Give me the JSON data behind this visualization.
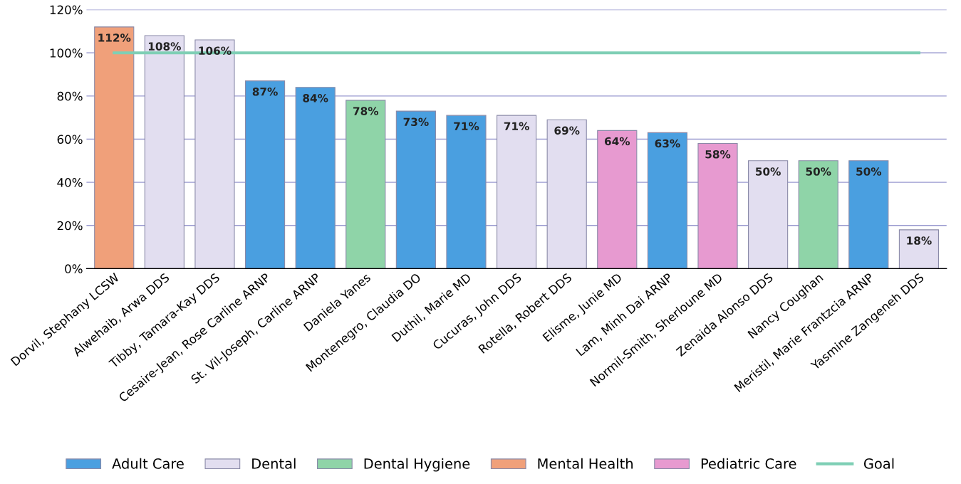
{
  "chart_data": {
    "type": "bar",
    "categories": [
      "Dorvil, Stephany LCSW",
      "Alwehaib, Arwa DDS",
      "Tibby, Tamara-Kay DDS",
      "Cesaire-Jean, Rose Carline ARNP",
      "St. Vil-Joseph, Carline ARNP",
      "Daniela Yanes",
      "Montenegro, Claudia DO",
      "Duthil, Marie MD",
      "Cucuras, John DDS",
      "Rotella, Robert DDS",
      "Elisme, Junie MD",
      "Lam, Minh Dai ARNP",
      "Normil-Smith, Sherloune MD",
      "Zenaida Alonso DDS",
      "Nancy Coughan",
      "Meristil, Marie Frantzcia ARNP",
      "Yasmine Zangeneh DDS"
    ],
    "series": [
      {
        "name": "Adult Care",
        "color": "#4a9fe0",
        "values": [
          null,
          null,
          null,
          87,
          84,
          null,
          73,
          71,
          null,
          null,
          null,
          63,
          null,
          null,
          null,
          50,
          null
        ],
        "value_labels": [
          null,
          null,
          null,
          "87%",
          "84%",
          null,
          "73%",
          "71%",
          null,
          null,
          null,
          "63%",
          null,
          null,
          null,
          "50%",
          null
        ]
      },
      {
        "name": "Dental",
        "color": "#e2def0",
        "values": [
          null,
          108,
          106,
          null,
          null,
          null,
          null,
          null,
          71,
          69,
          null,
          null,
          null,
          50,
          null,
          null,
          18
        ],
        "value_labels": [
          null,
          "108%",
          "106%",
          null,
          null,
          null,
          null,
          null,
          "71%",
          "69%",
          null,
          null,
          null,
          "50%",
          null,
          null,
          "18%"
        ]
      },
      {
        "name": "Dental Hygiene",
        "color": "#8fd4a8",
        "values": [
          null,
          null,
          null,
          null,
          null,
          78,
          null,
          null,
          null,
          null,
          null,
          null,
          null,
          null,
          50,
          null,
          null
        ],
        "value_labels": [
          null,
          null,
          null,
          null,
          null,
          "78%",
          null,
          null,
          null,
          null,
          null,
          null,
          null,
          null,
          "50%",
          null,
          null
        ]
      },
      {
        "name": "Mental Health",
        "color": "#f0a07a",
        "values": [
          112,
          null,
          null,
          null,
          null,
          null,
          null,
          null,
          null,
          null,
          null,
          null,
          null,
          null,
          null,
          null,
          null
        ],
        "value_labels": [
          "112%",
          null,
          null,
          null,
          null,
          null,
          null,
          null,
          null,
          null,
          null,
          null,
          null,
          null,
          null,
          null,
          null
        ]
      },
      {
        "name": "Pediatric Care",
        "color": "#e79ad0",
        "values": [
          null,
          null,
          null,
          null,
          null,
          null,
          null,
          null,
          null,
          null,
          64,
          null,
          58,
          null,
          null,
          null,
          null
        ],
        "value_labels": [
          null,
          null,
          null,
          null,
          null,
          null,
          null,
          null,
          null,
          null,
          "64%",
          null,
          "58%",
          null,
          null,
          null,
          null
        ]
      },
      {
        "name": "Goal",
        "type": "line",
        "color": "#7fcfb5",
        "values": [
          100,
          100,
          100,
          100,
          100,
          100,
          100,
          100,
          100,
          100,
          100,
          100,
          100,
          100,
          100,
          100,
          100
        ]
      }
    ],
    "ylim": [
      0,
      120
    ],
    "yticks": [
      {
        "value": 0,
        "label": "0%"
      },
      {
        "value": 20,
        "label": "20%"
      },
      {
        "value": 40,
        "label": "40%"
      },
      {
        "value": 60,
        "label": "60%"
      },
      {
        "value": 80,
        "label": "80%"
      },
      {
        "value": 100,
        "label": "100%"
      },
      {
        "value": 120,
        "label": "120%"
      }
    ],
    "grid": "y",
    "legend": "bottom"
  }
}
